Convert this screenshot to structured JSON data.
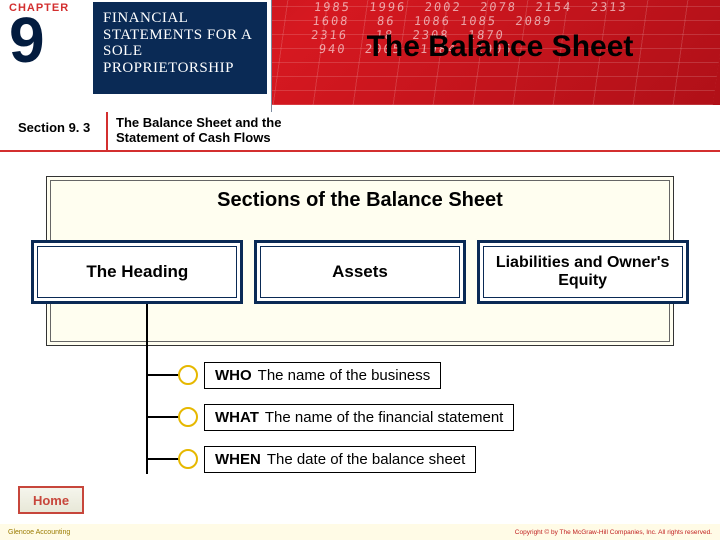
{
  "header": {
    "chapter_label": "CHAPTER",
    "chapter_number": "9",
    "chapter_title_l1": "FINANCIAL",
    "chapter_title_l2": "STATEMENTS FOR A",
    "chapter_title_l3": "SOLE PROPRIETORSHIP",
    "main_title": "The Balance Sheet",
    "ledger_noise": " 1985  1996  2002  2078  2154  2313\n 1608   86  1086 1085  2089\n 2316   18  2308  1870\n  940  2005  1984  1006"
  },
  "section": {
    "label": "Section 9. 3",
    "title": "The Balance Sheet and the Statement of Cash Flows"
  },
  "panel": {
    "title": "Sections of the Balance Sheet",
    "categories": [
      "The Heading",
      "Assets",
      "Liabilities and Owner's Equity"
    ]
  },
  "detail_rows": [
    {
      "tag": "WHO",
      "text": "The name of the business"
    },
    {
      "tag": "WHAT",
      "text": "The name of the financial statement"
    },
    {
      "tag": "WHEN",
      "text": "The date of the balance sheet"
    }
  ],
  "home_button": "Home",
  "footer": {
    "left": "Glencoe Accounting",
    "right": "Copyright © by The McGraw-Hill Companies, Inc. All rights reserved."
  },
  "colors": {
    "navy": "#0a2a55",
    "red": "#d32f2f",
    "panel_bg": "#fffef0",
    "circle_border": "#e6b800"
  }
}
